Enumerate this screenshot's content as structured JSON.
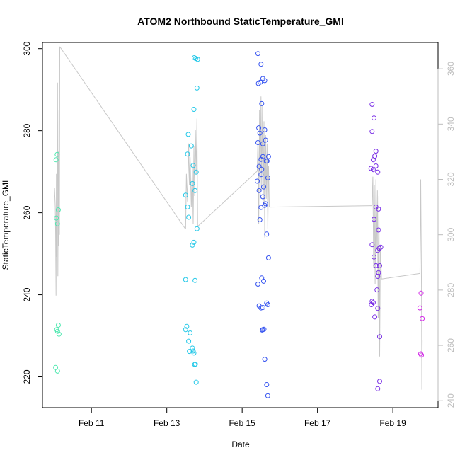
{
  "chart_data": {
    "type": "scatter",
    "title": "ATOM2 Northbound StaticTemperature_GMI",
    "xlabel": "Date",
    "ylabel": "StaticTemperature_GMI",
    "x_ticks": [
      "Feb 11",
      "Feb 13",
      "Feb 15",
      "Feb 17",
      "Feb 19"
    ],
    "x_tick_values": [
      11,
      13,
      15,
      17,
      19
    ],
    "xlim": [
      9.7,
      20.2
    ],
    "y_ticks": [
      220,
      240,
      260,
      280,
      300
    ],
    "ylim": [
      212.5,
      301.5
    ],
    "y2_ticks": [
      240,
      260,
      280,
      300,
      320,
      340,
      360
    ],
    "y2lim": [
      237.5,
      369.5
    ],
    "grid": false,
    "series": [
      {
        "color": "#4fe8b0",
        "points": [
          [
            10.05,
            222.3
          ],
          [
            10.1,
            221.4
          ],
          [
            10.08,
            231.5
          ],
          [
            10.1,
            231.1
          ],
          [
            10.12,
            232.6
          ],
          [
            10.14,
            230.4
          ],
          [
            10.07,
            258.7
          ],
          [
            10.1,
            257.3
          ],
          [
            10.12,
            260.7
          ],
          [
            10.06,
            272.9
          ],
          [
            10.09,
            274.2
          ]
        ]
      },
      {
        "color": "#22c8e8",
        "points": [
          [
            13.5,
            264.3
          ],
          [
            13.55,
            261.4
          ],
          [
            13.58,
            258.9
          ],
          [
            13.55,
            274.3
          ],
          [
            13.57,
            279.1
          ],
          [
            13.65,
            276.3
          ],
          [
            13.7,
            271.5
          ],
          [
            13.68,
            267.1
          ],
          [
            13.75,
            265.4
          ],
          [
            13.78,
            269.9
          ],
          [
            13.8,
            256.1
          ],
          [
            13.72,
            252.8
          ],
          [
            13.68,
            252.1
          ],
          [
            13.5,
            243.7
          ],
          [
            13.75,
            243.5
          ],
          [
            13.53,
            232.3
          ],
          [
            13.5,
            231.5
          ],
          [
            13.62,
            230.7
          ],
          [
            13.58,
            228.7
          ],
          [
            13.6,
            226.2
          ],
          [
            13.68,
            227.0
          ],
          [
            13.7,
            226.3
          ],
          [
            13.72,
            225.8
          ],
          [
            13.74,
            223.0
          ],
          [
            13.76,
            223.1
          ],
          [
            13.78,
            218.7
          ],
          [
            13.72,
            285.2
          ],
          [
            13.8,
            290.4
          ],
          [
            13.73,
            297.8
          ],
          [
            13.77,
            297.6
          ],
          [
            13.82,
            297.4
          ]
        ]
      },
      {
        "color": "#3553f0",
        "points": [
          [
            15.42,
            298.8
          ],
          [
            15.5,
            296.2
          ],
          [
            15.43,
            291.5
          ],
          [
            15.48,
            291.8
          ],
          [
            15.55,
            292.7
          ],
          [
            15.6,
            292.2
          ],
          [
            15.52,
            286.6
          ],
          [
            15.44,
            280.7
          ],
          [
            15.6,
            280.2
          ],
          [
            15.47,
            279.4
          ],
          [
            15.42,
            277.1
          ],
          [
            15.55,
            276.8
          ],
          [
            15.62,
            277.7
          ],
          [
            15.5,
            273.0
          ],
          [
            15.55,
            273.7
          ],
          [
            15.64,
            272.6
          ],
          [
            15.66,
            272.6
          ],
          [
            15.7,
            273.7
          ],
          [
            15.45,
            271.3
          ],
          [
            15.52,
            270.6
          ],
          [
            15.5,
            269.3
          ],
          [
            15.4,
            267.7
          ],
          [
            15.57,
            266.3
          ],
          [
            15.68,
            268.5
          ],
          [
            15.45,
            265.4
          ],
          [
            15.55,
            263.9
          ],
          [
            15.62,
            262.2
          ],
          [
            15.5,
            261.3
          ],
          [
            15.6,
            261.8
          ],
          [
            15.47,
            258.3
          ],
          [
            15.65,
            254.8
          ],
          [
            15.7,
            249.0
          ],
          [
            15.52,
            244.1
          ],
          [
            15.57,
            243.3
          ],
          [
            15.42,
            242.6
          ],
          [
            15.45,
            237.3
          ],
          [
            15.5,
            236.8
          ],
          [
            15.55,
            236.9
          ],
          [
            15.65,
            238.0
          ],
          [
            15.68,
            237.6
          ],
          [
            15.55,
            231.5
          ],
          [
            15.53,
            231.4
          ],
          [
            15.58,
            231.6
          ],
          [
            15.6,
            224.3
          ],
          [
            15.65,
            218.1
          ],
          [
            15.68,
            215.4
          ]
        ]
      },
      {
        "color": "#7a2fe6",
        "points": [
          [
            18.45,
            286.4
          ],
          [
            18.5,
            283.1
          ],
          [
            18.45,
            279.8
          ],
          [
            18.55,
            275.0
          ],
          [
            18.52,
            273.8
          ],
          [
            18.48,
            272.9
          ],
          [
            18.42,
            270.8
          ],
          [
            18.48,
            270.5
          ],
          [
            18.55,
            271.4
          ],
          [
            18.6,
            269.9
          ],
          [
            18.55,
            261.4
          ],
          [
            18.62,
            260.9
          ],
          [
            18.5,
            258.4
          ],
          [
            18.62,
            255.8
          ],
          [
            18.45,
            252.2
          ],
          [
            18.6,
            250.8
          ],
          [
            18.64,
            251.3
          ],
          [
            18.68,
            251.6
          ],
          [
            18.5,
            249.2
          ],
          [
            18.55,
            247.1
          ],
          [
            18.65,
            247.1
          ],
          [
            18.62,
            245.4
          ],
          [
            18.6,
            244.5
          ],
          [
            18.58,
            241.2
          ],
          [
            18.48,
            238.1
          ],
          [
            18.43,
            237.6
          ],
          [
            18.45,
            238.4
          ],
          [
            18.6,
            236.7
          ],
          [
            18.52,
            234.6
          ],
          [
            18.65,
            229.8
          ],
          [
            18.65,
            218.9
          ],
          [
            18.6,
            217.1
          ]
        ]
      },
      {
        "color": "#d226e8",
        "points": [
          [
            19.75,
            240.4
          ],
          [
            19.72,
            236.8
          ],
          [
            19.78,
            234.2
          ],
          [
            19.74,
            225.6
          ],
          [
            19.76,
            225.3
          ]
        ]
      }
    ],
    "trace": {
      "color": "#c8c8c8",
      "axis": "right",
      "segments": [
        [
          [
            10.02,
            317.0
          ],
          [
            10.04,
            310.0
          ],
          [
            10.05,
            300.0
          ],
          [
            10.06,
            278.0
          ],
          [
            10.07,
            322.0
          ],
          [
            10.08,
            292.0
          ],
          [
            10.09,
            340.0
          ],
          [
            10.1,
            355.0
          ],
          [
            10.11,
            285.0
          ],
          [
            10.12,
            330.0
          ],
          [
            10.13,
            296.0
          ],
          [
            10.14,
            345.0
          ],
          [
            10.15,
            300.0
          ],
          [
            10.16,
            368.0
          ]
        ],
        [
          [
            10.16,
            368.0
          ],
          [
            13.5,
            302.0
          ]
        ],
        [
          [
            13.5,
            302.0
          ],
          [
            13.52,
            322.0
          ],
          [
            13.55,
            312.0
          ],
          [
            13.58,
            333.0
          ],
          [
            13.6,
            318.0
          ],
          [
            13.62,
            328.0
          ],
          [
            13.65,
            310.0
          ],
          [
            13.68,
            325.0
          ],
          [
            13.7,
            304.0
          ],
          [
            13.72,
            332.0
          ],
          [
            13.74,
            314.0
          ],
          [
            13.76,
            338.0
          ],
          [
            13.78,
            322.0
          ],
          [
            13.8,
            342.0
          ],
          [
            13.82,
            303.0
          ]
        ],
        [
          [
            13.82,
            303.0
          ],
          [
            15.4,
            323.0
          ]
        ],
        [
          [
            15.4,
            323.0
          ],
          [
            15.42,
            335.0
          ],
          [
            15.44,
            304.0
          ],
          [
            15.46,
            345.0
          ],
          [
            15.48,
            313.0
          ],
          [
            15.5,
            350.0
          ],
          [
            15.52,
            316.0
          ],
          [
            15.54,
            347.0
          ],
          [
            15.56,
            311.0
          ],
          [
            15.58,
            341.0
          ],
          [
            15.6,
            299.0
          ],
          [
            15.62,
            336.0
          ],
          [
            15.64,
            313.0
          ],
          [
            15.66,
            333.0
          ],
          [
            15.68,
            302.0
          ],
          [
            15.7,
            325.0
          ],
          [
            15.72,
            310.0
          ]
        ],
        [
          [
            15.72,
            310.0
          ],
          [
            18.45,
            310.5
          ]
        ],
        [
          [
            18.45,
            310.5
          ],
          [
            18.47,
            321.0
          ],
          [
            18.49,
            288.0
          ],
          [
            18.51,
            318.0
          ],
          [
            18.53,
            282.0
          ],
          [
            18.55,
            320.0
          ],
          [
            18.57,
            295.0
          ],
          [
            18.59,
            316.0
          ],
          [
            18.61,
            270.0
          ],
          [
            18.63,
            314.0
          ],
          [
            18.65,
            256.0
          ],
          [
            18.67,
            296.0
          ],
          [
            18.7,
            284.0
          ]
        ],
        [
          [
            18.7,
            284.0
          ],
          [
            19.72,
            286.0
          ]
        ],
        [
          [
            19.72,
            286.0
          ],
          [
            19.74,
            320.0
          ],
          [
            19.76,
            281.0
          ],
          [
            19.77,
            244.0
          ],
          [
            19.78,
            262.0
          ]
        ]
      ]
    }
  }
}
